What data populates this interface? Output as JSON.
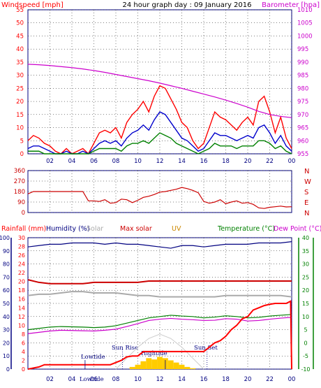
{
  "header": {
    "title": "24 hour graph day : 09 January 2016",
    "left_label": "Windspeed [mph]",
    "right_label": "Barometer [hpa]"
  },
  "colors": {
    "wind": "#ff0000",
    "wind_avg": "#0000cc",
    "wind_low": "#008000",
    "barometer": "#cc00cc",
    "direction": "#cc0000",
    "frame": "#000080",
    "grid": "#000000",
    "bg": "#ffffff",
    "humidity": "#000080",
    "max_solar": "#dddddd",
    "solar": "#ffcc00",
    "rain": "#ff0000",
    "temperature": "#008000",
    "dewpoint": "#cc00cc",
    "uv": "#cc8800",
    "tide": "#000080",
    "red_line": "#cc0000",
    "grey_line": "#aaaaaa"
  },
  "chart_data": [
    {
      "id": "wind",
      "type": "line",
      "title": "24 hour graph day : 09 January 2016",
      "xlabel": "",
      "ylabel": "Windspeed [mph]",
      "y2label": "Barometer [hpa]",
      "x_ticks": [
        "02",
        "04",
        "06",
        "08",
        "10",
        "12",
        "14",
        "16",
        "18",
        "20",
        "22",
        "00"
      ],
      "ylim": [
        0,
        55
      ],
      "y_ticks": [
        0,
        5,
        10,
        15,
        20,
        25,
        30,
        35,
        40,
        45,
        50,
        55
      ],
      "y2lim": [
        955,
        1010
      ],
      "y2_ticks": [
        955,
        960,
        965,
        970,
        975,
        980,
        985,
        990,
        995,
        1000,
        1005,
        1010
      ],
      "grid": true,
      "series": [
        {
          "color": "#ff0000",
          "x": [
            0,
            0.5,
            1,
            1.5,
            2,
            2.5,
            3,
            3.5,
            4,
            4.5,
            5,
            5.5,
            6,
            6.5,
            7,
            7.5,
            8,
            8.5,
            9,
            9.5,
            10,
            10.5,
            11,
            11.5,
            12,
            12.5,
            13,
            13.5,
            14,
            14.5,
            15,
            15.5,
            16,
            16.5,
            17,
            17.5,
            18,
            18.5,
            19,
            19.5,
            20,
            20.5,
            21,
            21.5,
            22,
            22.5,
            23,
            23.5,
            24
          ],
          "values": [
            5,
            7,
            6,
            4,
            3,
            1,
            0,
            2,
            0,
            1,
            2,
            0,
            4,
            8,
            9,
            8,
            10,
            6,
            12,
            15,
            17,
            20,
            16,
            22,
            26,
            25,
            21,
            17,
            12,
            10,
            5,
            2,
            4,
            10,
            16,
            14,
            13,
            11,
            9,
            12,
            14,
            11,
            20,
            22,
            16,
            8,
            14,
            6,
            2
          ]
        },
        {
          "color": "#0000cc",
          "x": [
            0,
            0.5,
            1,
            1.5,
            2,
            2.5,
            3,
            3.5,
            4,
            4.5,
            5,
            5.5,
            6,
            6.5,
            7,
            7.5,
            8,
            8.5,
            9,
            9.5,
            10,
            10.5,
            11,
            11.5,
            12,
            12.5,
            13,
            13.5,
            14,
            14.5,
            15,
            15.5,
            16,
            16.5,
            17,
            17.5,
            18,
            18.5,
            19,
            19.5,
            20,
            20.5,
            21,
            21.5,
            22,
            22.5,
            23,
            23.5,
            24
          ],
          "values": [
            2,
            3,
            3,
            2,
            1,
            0,
            0,
            1,
            0,
            0,
            1,
            0,
            2,
            4,
            5,
            4,
            5,
            3,
            6,
            8,
            9,
            11,
            9,
            13,
            16,
            15,
            12,
            9,
            6,
            5,
            3,
            1,
            2,
            5,
            8,
            7,
            7,
            6,
            5,
            6,
            7,
            6,
            10,
            11,
            8,
            4,
            7,
            3,
            1
          ]
        },
        {
          "color": "#008000",
          "x": [
            0,
            0.5,
            1,
            1.5,
            2,
            2.5,
            3,
            3.5,
            4,
            4.5,
            5,
            5.5,
            6,
            6.5,
            7,
            7.5,
            8,
            8.5,
            9,
            9.5,
            10,
            10.5,
            11,
            11.5,
            12,
            12.5,
            13,
            13.5,
            14,
            14.5,
            15,
            15.5,
            16,
            16.5,
            17,
            17.5,
            18,
            18.5,
            19,
            19.5,
            20,
            20.5,
            21,
            21.5,
            22,
            22.5,
            23,
            23.5,
            24
          ],
          "values": [
            1,
            1,
            1,
            0,
            0,
            0,
            0,
            0,
            0,
            0,
            0,
            0,
            1,
            2,
            2,
            2,
            2,
            1,
            3,
            4,
            4,
            5,
            4,
            6,
            8,
            7,
            6,
            4,
            3,
            2,
            1,
            0,
            1,
            2,
            4,
            3,
            3,
            3,
            2,
            3,
            3,
            3,
            5,
            5,
            4,
            2,
            3,
            1,
            0
          ]
        },
        {
          "color": "#cc00cc",
          "axis": "right",
          "x": [
            0,
            1,
            2,
            3,
            4,
            5,
            6,
            7,
            8,
            9,
            10,
            11,
            12,
            13,
            14,
            15,
            16,
            17,
            18,
            19,
            20,
            21,
            22,
            23,
            24
          ],
          "values": [
            989.2,
            989.0,
            988.7,
            988.3,
            987.9,
            987.4,
            986.8,
            986.1,
            985.3,
            984.5,
            983.7,
            982.9,
            982.0,
            981.0,
            980.0,
            978.9,
            977.8,
            976.7,
            975.5,
            974.2,
            972.8,
            971.2,
            970.0,
            969.3,
            968.8
          ]
        }
      ]
    },
    {
      "id": "direction",
      "type": "line",
      "ylim": [
        0,
        360
      ],
      "y_ticks": [
        0,
        90,
        180,
        270,
        360
      ],
      "compass_labels": [
        "N",
        "W",
        "S",
        "E",
        "N"
      ],
      "x_ticks": [
        "02",
        "04",
        "06",
        "08",
        "10",
        "12",
        "14",
        "16",
        "18",
        "20",
        "22",
        "00"
      ],
      "grid": true,
      "series": [
        {
          "color": "#cc0000",
          "x": [
            0,
            0.5,
            1,
            2,
            3,
            4,
            4.5,
            5,
            5.5,
            6,
            6.5,
            7,
            7.5,
            8,
            8.5,
            9,
            9.5,
            10,
            10.5,
            11,
            11.5,
            12,
            12.5,
            13,
            13.5,
            14,
            14.5,
            15,
            15.5,
            16,
            16.5,
            17,
            17.5,
            18,
            18.5,
            19,
            19.5,
            20,
            20.5,
            21,
            21.5,
            22,
            22.5,
            23,
            23.5,
            24
          ],
          "values": [
            160,
            180,
            180,
            180,
            180,
            180,
            180,
            180,
            100,
            100,
            95,
            110,
            80,
            85,
            115,
            110,
            85,
            105,
            130,
            140,
            155,
            175,
            180,
            190,
            200,
            215,
            205,
            190,
            170,
            95,
            80,
            90,
            110,
            75,
            90,
            100,
            80,
            85,
            70,
            40,
            35,
            45,
            50,
            55,
            48,
            50
          ]
        }
      ]
    },
    {
      "id": "climate",
      "type": "line",
      "x_ticks": [
        "02",
        "04",
        "06",
        "08",
        "10",
        "12",
        "14",
        "16",
        "18",
        "20",
        "22",
        "00"
      ],
      "legend": [
        "Rainfall (mm)",
        "Humidity (%)",
        "Solar",
        "Max solar",
        "UV",
        "Temperature (°C)",
        "Dew Point (°C)"
      ],
      "y_left_humidity": [
        0,
        10,
        20,
        30,
        40,
        50,
        60,
        70,
        80,
        90,
        100
      ],
      "y_left_rain": [
        0,
        2,
        4,
        6,
        8,
        10,
        12,
        14,
        16,
        18,
        20,
        22,
        24,
        26,
        28,
        30
      ],
      "y_right_temp": [
        -10,
        -5,
        0,
        5,
        10,
        15,
        20,
        25,
        30,
        35,
        40
      ],
      "annotations": [
        "Lowtide",
        "Sun Rise",
        "Hightide",
        "Sun Set",
        "Lowtide"
      ],
      "grid": true,
      "series": [
        {
          "name": "Humidity (%)",
          "color": "#000080",
          "axis": "humidity",
          "x": [
            0,
            1,
            2,
            3,
            4,
            5,
            6,
            7,
            8,
            9,
            10,
            11,
            12,
            13,
            14,
            15,
            16,
            17,
            18,
            19,
            20,
            21,
            22,
            23,
            24
          ],
          "values": [
            93,
            94,
            95,
            95,
            96,
            96,
            96,
            95,
            96,
            95,
            95,
            94,
            93,
            92,
            94,
            94,
            93,
            94,
            95,
            95,
            95,
            96,
            96,
            96,
            97
          ]
        },
        {
          "name": "Temperature (°C)",
          "color": "#008000",
          "axis": "temp",
          "x": [
            0,
            1,
            2,
            3,
            4,
            5,
            6,
            7,
            8,
            9,
            10,
            11,
            12,
            13,
            14,
            15,
            16,
            17,
            18,
            19,
            20,
            21,
            22,
            23,
            24
          ],
          "values": [
            5,
            5.5,
            6,
            6.2,
            6.1,
            6.0,
            5.8,
            6.0,
            6.5,
            7.5,
            8.5,
            9.5,
            10,
            10.5,
            10.2,
            10.0,
            9.5,
            9.8,
            10.3,
            10.0,
            9.5,
            9.7,
            10.2,
            10.5,
            10.8
          ]
        },
        {
          "name": "Dew Point (°C)",
          "color": "#cc00cc",
          "axis": "temp",
          "x": [
            0,
            1,
            2,
            3,
            4,
            5,
            6,
            7,
            8,
            9,
            10,
            11,
            12,
            13,
            14,
            15,
            16,
            17,
            18,
            19,
            20,
            21,
            22,
            23,
            24
          ],
          "values": [
            3.5,
            4.0,
            4.5,
            4.8,
            4.7,
            4.6,
            4.5,
            4.8,
            5.2,
            6.2,
            7.3,
            8.5,
            9.0,
            9.3,
            9.0,
            8.8,
            8.5,
            8.6,
            9.2,
            9.0,
            8.3,
            8.5,
            9.0,
            9.4,
            9.7
          ]
        },
        {
          "name": "Rainfall (mm)",
          "color": "#ff0000",
          "axis": "rain",
          "x": [
            0,
            1,
            1.5,
            7.5,
            8,
            8.5,
            9,
            9.5,
            10,
            10.5,
            11,
            11.5,
            16,
            16.5,
            17,
            17.5,
            18,
            18.5,
            19,
            19.5,
            20,
            20.5,
            21,
            21.5,
            22,
            22.5,
            23,
            23.5,
            23.9,
            24
          ],
          "values": [
            0,
            0.5,
            1.0,
            1.0,
            1.5,
            2.0,
            2.8,
            3.0,
            3.0,
            4.0,
            4.0,
            4.0,
            4.0,
            5.0,
            6.0,
            6.5,
            7.5,
            9.0,
            10.0,
            11.5,
            12.0,
            13.5,
            14.0,
            14.5,
            14.8,
            15.0,
            15.0,
            15.0,
            15.5,
            0
          ]
        },
        {
          "color": "#cc0000",
          "axis": "humidity",
          "x": [
            0,
            1,
            2,
            3,
            4,
            5,
            6,
            7,
            8,
            9,
            10,
            11,
            12,
            13,
            14,
            15,
            16,
            17,
            18,
            19,
            20,
            21,
            22,
            23,
            24
          ],
          "values": [
            68,
            66,
            65,
            65,
            65,
            65,
            66,
            66,
            66,
            66,
            66,
            67,
            67,
            67,
            67,
            67,
            67,
            67,
            67,
            67,
            67,
            67,
            67,
            67,
            67
          ]
        },
        {
          "color": "#aaaaaa",
          "axis": "humidity",
          "x": [
            0,
            1,
            2,
            3,
            4,
            5,
            6,
            7,
            8,
            9,
            10,
            11,
            12,
            13,
            14,
            15,
            16,
            17,
            18,
            19,
            20,
            21,
            22,
            23,
            24
          ],
          "values": [
            56,
            57,
            57,
            58,
            59,
            59,
            58,
            58,
            58,
            57,
            56,
            56,
            55,
            55,
            55,
            55,
            55,
            55,
            56,
            56,
            56,
            56,
            56,
            56,
            55
          ]
        }
      ],
      "solar_bars": {
        "color": "#ffcc00",
        "x": [
          9.5,
          10,
          10.5,
          11,
          11.5,
          12,
          12.5,
          13,
          13.5,
          14,
          14.5,
          15
        ],
        "values": [
          0.5,
          1.0,
          1.8,
          2.5,
          2.2,
          2.8,
          2.5,
          2.0,
          1.5,
          1.0,
          0.5,
          0.2
        ]
      },
      "tide_curve": {
        "color": "#cccccc",
        "x": [
          8,
          9,
          10,
          11,
          12,
          13,
          14,
          15,
          16
        ],
        "values": [
          0,
          2.5,
          5,
          7,
          8,
          7,
          5,
          2.5,
          0
        ]
      }
    }
  ],
  "climate_legend": {
    "rain": "Rainfall (mm)",
    "humidity": "Humidity (%)",
    "solar": "Solar",
    "max_solar": "Max solar",
    "uv": "UV",
    "temperature": "Temperature (°C)",
    "dewpoint": "Dew Point (°C)"
  },
  "tide_labels": {
    "lowtide1": "Lowtide",
    "sunrise": "Sun Rise",
    "hightide": "Hightide",
    "sunset": "Sun Set",
    "lowtide2": "Lowtide"
  }
}
